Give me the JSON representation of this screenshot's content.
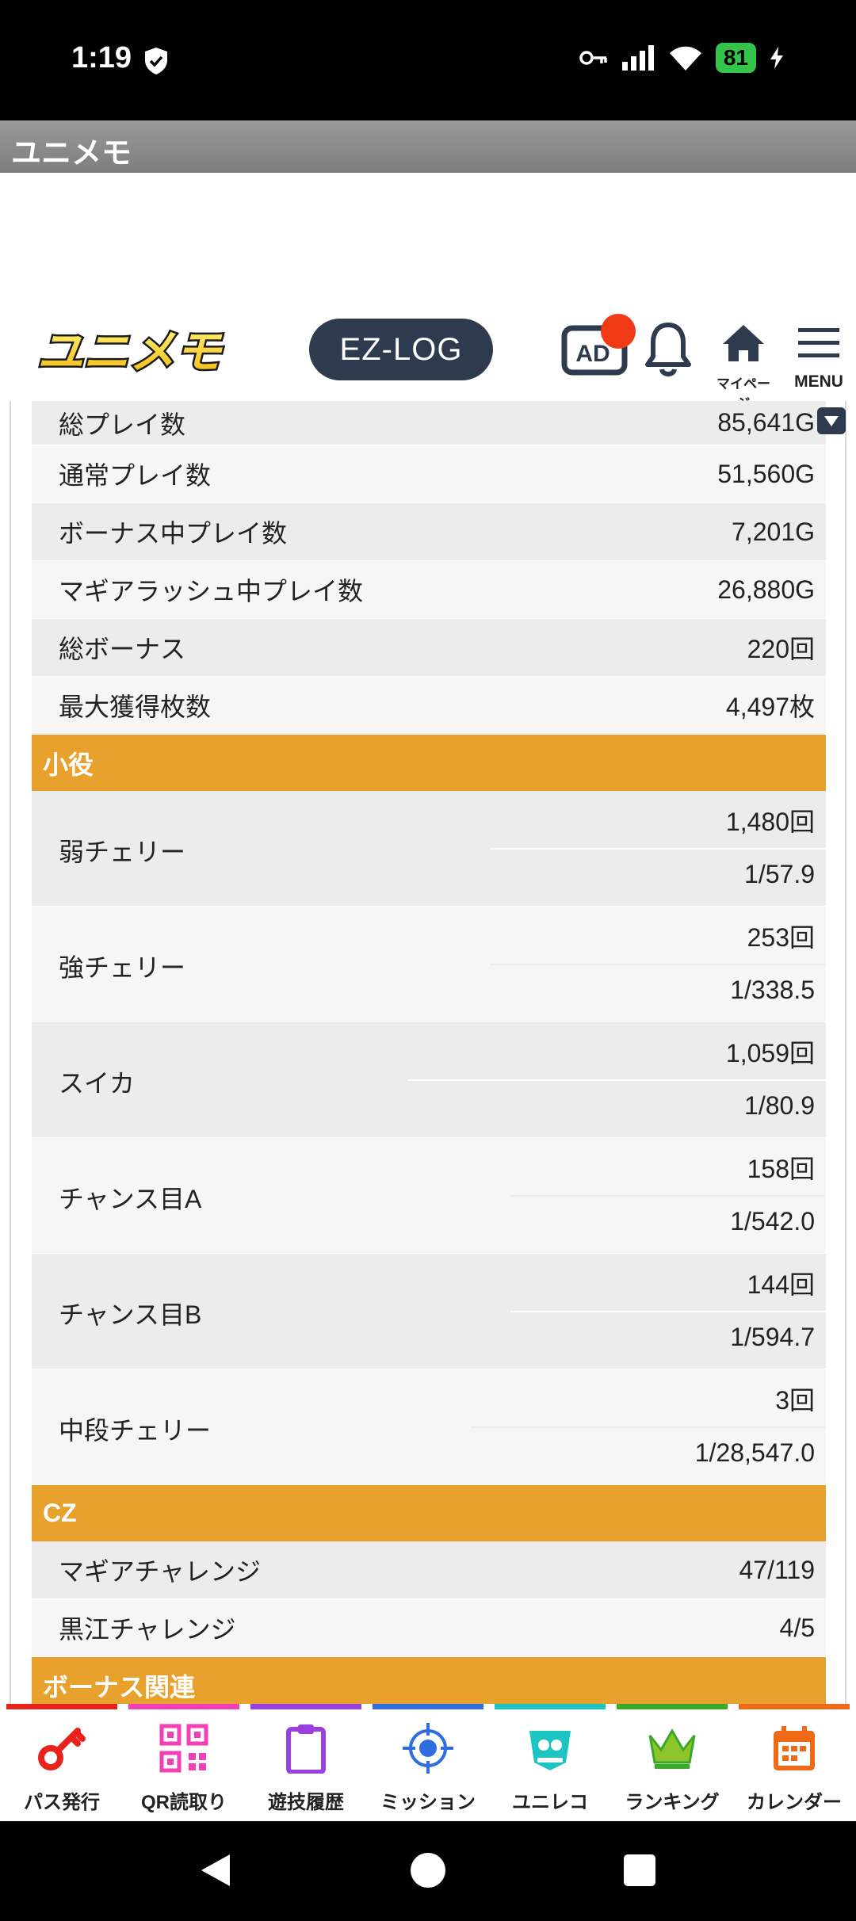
{
  "status_bar": {
    "time": "1:19",
    "battery": "81"
  },
  "app_title": "ユニメモ",
  "header": {
    "logo_text": "ユニメモ",
    "ezlog_label": "EZ-LOG",
    "ad_label": "AD",
    "mypage_label": "マイページ",
    "menu_label": "MENU"
  },
  "stats": [
    {
      "label": "総プレイ数",
      "value": "85,641G"
    },
    {
      "label": "通常プレイ数",
      "value": "51,560G"
    },
    {
      "label": "ボーナス中プレイ数",
      "value": "7,201G"
    },
    {
      "label": "マギアラッシュ中プレイ数",
      "value": "26,880G"
    },
    {
      "label": "総ボーナス",
      "value": "220回"
    },
    {
      "label": "最大獲得枚数",
      "value": "4,497枚"
    }
  ],
  "sections": {
    "small_role": "小役",
    "cz": "CZ",
    "bonus": "ボーナス関連"
  },
  "small_roles": [
    {
      "label": "弱チェリー",
      "count": "1,480回",
      "rate": "1/57.9"
    },
    {
      "label": "強チェリー",
      "count": "253回",
      "rate": "1/338.5"
    },
    {
      "label": "スイカ",
      "count": "1,059回",
      "rate": "1/80.9"
    },
    {
      "label": "チャンス目A",
      "count": "158回",
      "rate": "1/542.0"
    },
    {
      "label": "チャンス目B",
      "count": "144回",
      "rate": "1/594.7"
    },
    {
      "label": "中段チェリー",
      "count": "3回",
      "rate": "1/28,547.0"
    }
  ],
  "cz_rows": [
    {
      "label": "マギアチャレンジ",
      "value": "47/119"
    },
    {
      "label": "黒江チャレンジ",
      "value": "4/5"
    }
  ],
  "bottom_nav": [
    {
      "label": "パス発行",
      "color": "#e8221c"
    },
    {
      "label": "QR読取り",
      "color": "#f23fb5"
    },
    {
      "label": "遊技履歴",
      "color": "#9a3fe0"
    },
    {
      "label": "ミッション",
      "color": "#2f6de0"
    },
    {
      "label": "ユニレコ",
      "color": "#1cc4c4"
    },
    {
      "label": "ランキング",
      "color": "#3aa82a"
    },
    {
      "label": "カレンダー",
      "color": "#ef6a16"
    }
  ]
}
